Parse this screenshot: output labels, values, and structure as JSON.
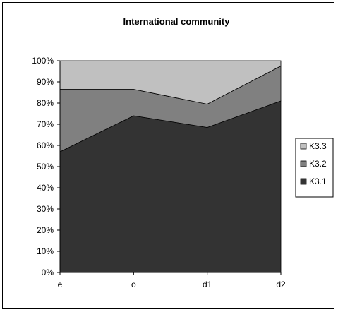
{
  "chart_data": {
    "type": "area",
    "stacked": true,
    "title": "International community",
    "xlabel": "",
    "ylabel": "",
    "categories": [
      "e",
      "o",
      "d1",
      "d2"
    ],
    "ylim": [
      0,
      100
    ],
    "y_ticks": [
      "0%",
      "10%",
      "20%",
      "30%",
      "40%",
      "50%",
      "60%",
      "70%",
      "80%",
      "90%",
      "100%"
    ],
    "series": [
      {
        "name": "K3.1",
        "values": [
          57,
          74,
          68.5,
          81
        ],
        "color": "#333333"
      },
      {
        "name": "K3.2",
        "values": [
          29.5,
          12.5,
          11,
          16.5
        ],
        "color": "#808080"
      },
      {
        "name": "K3.3",
        "values": [
          13.5,
          13.5,
          20.5,
          2.5
        ],
        "color": "#c0c0c0"
      }
    ],
    "legend_order": [
      "K3.3",
      "K3.2",
      "K3.1"
    ],
    "legend_position": "right",
    "grid": false
  }
}
